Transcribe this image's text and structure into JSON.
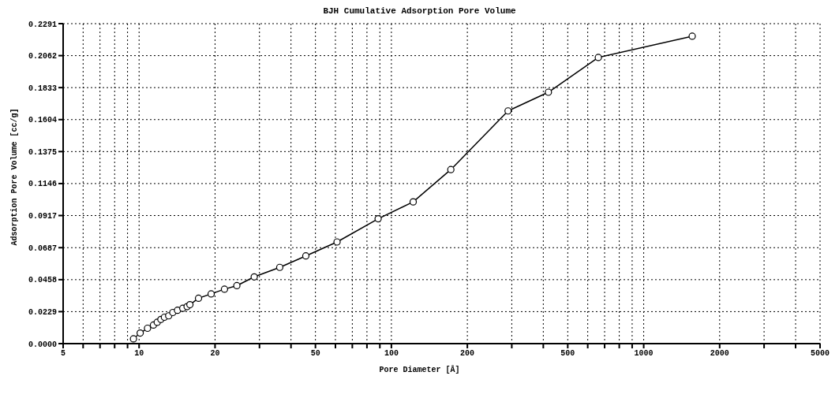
{
  "chart_data": {
    "type": "line",
    "title": "BJH Cumulative Adsorption Pore Volume",
    "xlabel": "Pore Diameter [Å]",
    "ylabel": "Adsorption Pore Volume [cc/g]",
    "x": [
      9.5,
      10.1,
      10.8,
      11.4,
      11.8,
      12.2,
      12.6,
      13.1,
      13.6,
      14.2,
      14.9,
      15.5,
      15.9,
      17.2,
      19.3,
      21.8,
      24.4,
      28.6,
      36.1,
      45.8,
      60.9,
      88.6,
      122,
      172,
      290,
      419,
      661,
      1557
    ],
    "series": [
      {
        "color": "#000000",
        "values": [
          0.0034,
          0.0076,
          0.011,
          0.0133,
          0.0153,
          0.0173,
          0.0189,
          0.0199,
          0.0223,
          0.0239,
          0.0253,
          0.0265,
          0.0279,
          0.0325,
          0.0356,
          0.039,
          0.0415,
          0.0478,
          0.0546,
          0.0628,
          0.0728,
          0.0894,
          0.1015,
          0.1246,
          0.1666,
          0.18,
          0.2049,
          0.2201
        ]
      }
    ],
    "log": "x",
    "xlim": [
      5,
      5000
    ],
    "xticks": [
      5,
      {
        "value": 6,
        "label": null
      },
      {
        "value": 7,
        "label": null
      },
      {
        "value": 8,
        "label": null
      },
      {
        "value": 9,
        "label": null
      },
      10,
      20,
      {
        "value": 30,
        "label": null
      },
      {
        "value": 40,
        "label": null
      },
      50,
      {
        "value": 60,
        "label": null
      },
      {
        "value": 70,
        "label": null
      },
      {
        "value": 80,
        "label": null
      },
      {
        "value": 90,
        "label": null
      },
      100,
      200,
      {
        "value": 300,
        "label": null
      },
      {
        "value": 400,
        "label": null
      },
      500,
      {
        "value": 600,
        "label": null
      },
      {
        "value": 700,
        "label": null
      },
      {
        "value": 800,
        "label": null
      },
      {
        "value": 900,
        "label": null
      },
      1000,
      2000,
      {
        "value": 3000,
        "label": null
      },
      {
        "value": 4000,
        "label": null
      },
      5000
    ],
    "ylim": [
      0,
      0.2291
    ],
    "yticks": [
      {
        "value": 0,
        "label": "0.0000"
      },
      0.0229,
      0.0458,
      0.0687,
      0.0917,
      0.1146,
      0.1375,
      0.1604,
      0.1833,
      0.2062,
      0.2291
    ],
    "grid": true,
    "marker": "circle",
    "line_style": "solid",
    "legend": false
  }
}
